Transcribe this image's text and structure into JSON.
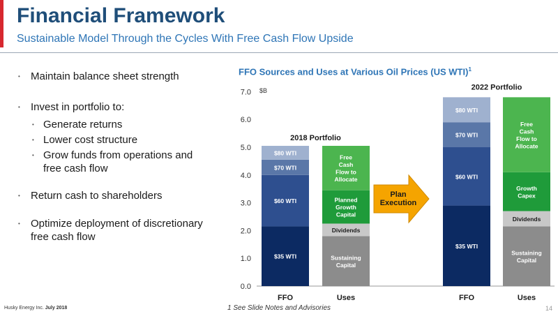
{
  "slide": {
    "title": "Financial Framework",
    "subtitle": "Sustainable Model Through the Cycles With Free Cash Flow Upside"
  },
  "bullets": {
    "b1": "Maintain balance sheet strength",
    "b2": "Invest in portfolio to:",
    "b2_1": "Generate returns",
    "b2_2": "Lower cost structure",
    "b2_3": "Grow funds from operations and free cash flow",
    "b3": "Return cash to shareholders",
    "b4": "Optimize deployment of discretionary free cash flow"
  },
  "footer": {
    "company": "Husky Energy Inc.",
    "date": "July 2018",
    "note": "1 See Slide Notes and Advisories",
    "page": "14"
  },
  "colors": {
    "accent": "#d7282f",
    "title": "#1f4e79",
    "chart_title": "#2e75b6",
    "arrow": "#f5a400"
  },
  "chart_data": {
    "type": "bar",
    "stacked": true,
    "title": "FFO Sources and Uses at Various Oil Prices (US WTI)",
    "title_superscript": "1",
    "y_unit": "$B",
    "ylim": [
      0,
      7
    ],
    "yticks": [
      "0.0",
      "1.0",
      "2.0",
      "3.0",
      "4.0",
      "5.0",
      "6.0",
      "7.0"
    ],
    "grid": false,
    "groups": [
      {
        "label": "2018 Portfolio",
        "bars": [
          {
            "category": "FFO",
            "segments": [
              {
                "label": "$35 WTI",
                "value": 2.15,
                "color": "#0c2a62",
                "text_color": "#ffffff"
              },
              {
                "label": "$60 WTI",
                "value": 1.85,
                "color": "#2e4f8f",
                "text_color": "#ffffff"
              },
              {
                "label": "$70 WTI",
                "value": 0.55,
                "color": "#5a77a8",
                "text_color": "#ffffff"
              },
              {
                "label": "$80 WTI",
                "value": 0.5,
                "color": "#9fb1cf",
                "text_color": "#ffffff"
              }
            ]
          },
          {
            "category": "Uses",
            "segments": [
              {
                "label": "Sustaining Capital",
                "value": 1.8,
                "color": "#8c8c8c",
                "text_color": "#ffffff"
              },
              {
                "label": "Dividends",
                "value": 0.45,
                "color": "#c8c8c8",
                "text_color": "#1a1a1a"
              },
              {
                "label": "Planned Growth Capital",
                "value": 1.2,
                "color": "#1f9b3a",
                "text_color": "#ffffff"
              },
              {
                "label": "Free Cash Flow to Allocate",
                "value": 1.6,
                "color": "#4cb54f",
                "text_color": "#ffffff"
              }
            ]
          }
        ]
      },
      {
        "label": "2022 Portfolio",
        "bars": [
          {
            "category": "FFO",
            "segments": [
              {
                "label": "$35 WTI",
                "value": 2.9,
                "color": "#0c2a62",
                "text_color": "#ffffff"
              },
              {
                "label": "$60 WTI",
                "value": 2.1,
                "color": "#2e4f8f",
                "text_color": "#ffffff"
              },
              {
                "label": "$70 WTI",
                "value": 0.9,
                "color": "#5a77a8",
                "text_color": "#ffffff"
              },
              {
                "label": "$80 WTI",
                "value": 0.9,
                "color": "#9fb1cf",
                "text_color": "#ffffff"
              }
            ]
          },
          {
            "category": "Uses",
            "segments": [
              {
                "label": "Sustaining Capital",
                "value": 2.15,
                "color": "#8c8c8c",
                "text_color": "#ffffff"
              },
              {
                "label": "Dividends",
                "value": 0.55,
                "color": "#c8c8c8",
                "text_color": "#1a1a1a"
              },
              {
                "label": "Growth Capex",
                "value": 1.4,
                "color": "#1f9b3a",
                "text_color": "#ffffff"
              },
              {
                "label": "Free Cash Flow to Allocate",
                "value": 2.7,
                "color": "#4cb54f",
                "text_color": "#ffffff"
              }
            ]
          }
        ]
      }
    ],
    "annotation": {
      "label": "Plan Execution"
    }
  }
}
